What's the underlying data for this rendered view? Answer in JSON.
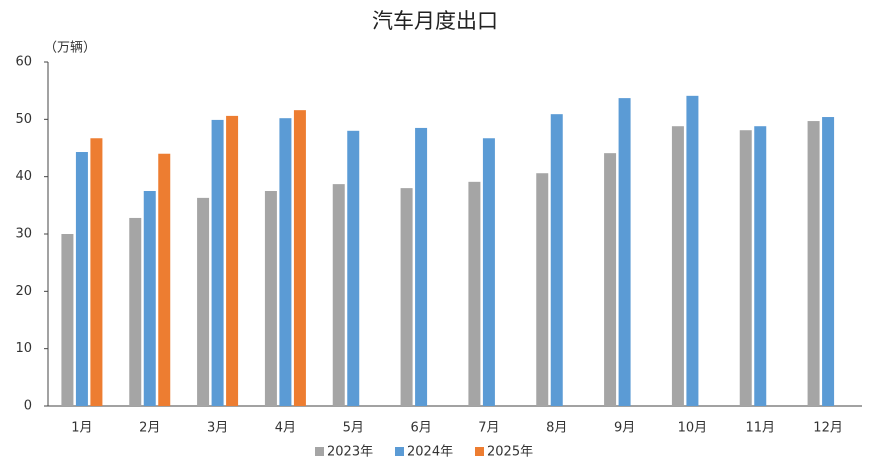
{
  "chart_data": {
    "type": "bar",
    "title": "汽车月度出口",
    "y_label": "（万辆）",
    "categories": [
      "1月",
      "2月",
      "3月",
      "4月",
      "5月",
      "6月",
      "7月",
      "8月",
      "9月",
      "10月",
      "11月",
      "12月"
    ],
    "series": [
      {
        "name": "2023年",
        "color": "#a5a5a5",
        "values": [
          30.0,
          32.8,
          36.3,
          37.5,
          38.7,
          38.0,
          39.1,
          40.6,
          44.1,
          48.8,
          48.1,
          49.7
        ]
      },
      {
        "name": "2024年",
        "color": "#5b9bd5",
        "values": [
          44.3,
          37.5,
          49.9,
          50.2,
          48.0,
          48.5,
          46.7,
          50.9,
          53.7,
          54.1,
          48.8,
          50.4
        ]
      },
      {
        "name": "2025年",
        "color": "#ed7d31",
        "values": [
          46.7,
          44.0,
          50.6,
          51.6,
          null,
          null,
          null,
          null,
          null,
          null,
          null,
          null
        ]
      }
    ],
    "ylim": [
      0,
      60
    ],
    "yticks": [
      0,
      10,
      20,
      30,
      40,
      50,
      60
    ],
    "grid": false,
    "legend": "bottom"
  }
}
